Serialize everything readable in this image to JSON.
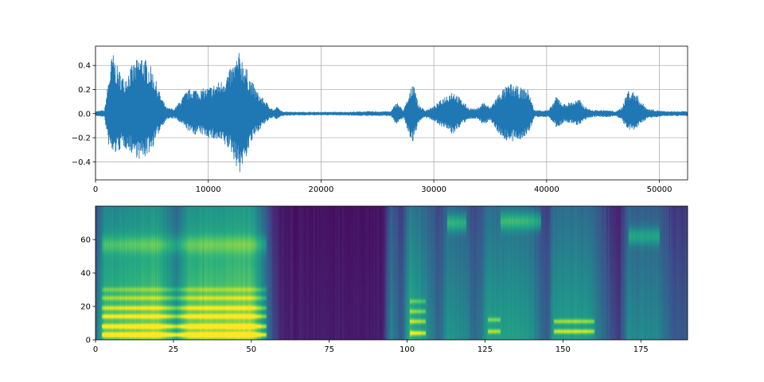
{
  "chart_data": [
    {
      "type": "line",
      "title": "",
      "xlabel": "",
      "ylabel": "",
      "xlim": [
        0,
        52500
      ],
      "ylim": [
        -0.55,
        0.56
      ],
      "grid": true,
      "line_color": "#1f77b4",
      "x_ticks": [
        0,
        10000,
        20000,
        30000,
        40000,
        50000
      ],
      "x_tick_labels": [
        "0",
        "10000",
        "20000",
        "30000",
        "40000",
        "50000"
      ],
      "y_ticks": [
        0.4,
        0.2,
        0.0,
        -0.2,
        -0.4
      ],
      "y_tick_labels": [
        "0.4",
        "0.2",
        "0.0",
        "−0.2",
        "−0.4"
      ],
      "series": [
        {
          "x": [
            0,
            800,
            1100,
            1500,
            1900,
            2500,
            3200,
            4100,
            5000,
            5800,
            6300,
            7000,
            8000,
            8600,
            9200,
            10000,
            11200,
            12000,
            12400,
            12800,
            13300,
            13800,
            14400,
            15300,
            15800,
            16100,
            16500,
            18000,
            20000,
            22000,
            24000,
            26200,
            26700,
            27300,
            27800,
            28200,
            28600,
            29200,
            30000,
            31000,
            31700,
            32400,
            33100,
            33800,
            34400,
            35000,
            35400,
            36000,
            36800,
            37600,
            38400,
            38900,
            39400,
            40200,
            40900,
            41500,
            42100,
            42900,
            43400,
            44000,
            44700,
            45300,
            46200,
            46700,
            47200,
            47900,
            48400,
            49000,
            49800,
            50500,
            51500,
            52500
          ],
          "peak": [
            0.02,
            0.03,
            0.25,
            0.52,
            0.4,
            0.3,
            0.4,
            0.5,
            0.38,
            0.15,
            0.05,
            0.04,
            0.18,
            0.22,
            0.2,
            0.22,
            0.28,
            0.38,
            0.45,
            0.52,
            0.4,
            0.28,
            0.18,
            0.08,
            0.03,
            0.06,
            0.02,
            0.015,
            0.015,
            0.015,
            0.02,
            0.02,
            0.1,
            0.03,
            0.15,
            0.3,
            0.08,
            0.03,
            0.06,
            0.15,
            0.2,
            0.12,
            0.05,
            0.04,
            0.1,
            0.05,
            0.12,
            0.2,
            0.25,
            0.22,
            0.2,
            0.03,
            0.03,
            0.03,
            0.15,
            0.08,
            0.1,
            0.12,
            0.06,
            0.03,
            0.03,
            0.03,
            0.02,
            0.06,
            0.2,
            0.18,
            0.1,
            0.04,
            0.03,
            0.02,
            0.02,
            0.02
          ],
          "trough": [
            -0.02,
            -0.03,
            -0.25,
            -0.35,
            -0.33,
            -0.28,
            -0.33,
            -0.4,
            -0.3,
            -0.12,
            -0.05,
            -0.04,
            -0.12,
            -0.18,
            -0.17,
            -0.2,
            -0.25,
            -0.32,
            -0.42,
            -0.5,
            -0.38,
            -0.25,
            -0.15,
            -0.06,
            -0.03,
            -0.05,
            -0.02,
            -0.015,
            -0.015,
            -0.015,
            -0.02,
            -0.02,
            -0.1,
            -0.03,
            -0.18,
            -0.25,
            -0.08,
            -0.03,
            -0.06,
            -0.13,
            -0.18,
            -0.1,
            -0.05,
            -0.04,
            -0.1,
            -0.05,
            -0.12,
            -0.2,
            -0.25,
            -0.22,
            -0.18,
            -0.03,
            -0.03,
            -0.03,
            -0.12,
            -0.08,
            -0.08,
            -0.1,
            -0.06,
            -0.03,
            -0.03,
            -0.03,
            -0.02,
            -0.06,
            -0.15,
            -0.14,
            -0.08,
            -0.04,
            -0.03,
            -0.02,
            -0.02,
            -0.02
          ]
        }
      ]
    },
    {
      "type": "heatmap",
      "title": "",
      "xlabel": "",
      "ylabel": "",
      "xlim": [
        0,
        190
      ],
      "ylim": [
        0,
        80
      ],
      "colormap": "viridis",
      "colors": {
        "low": "#440154",
        "mid": "#21918c",
        "high": "#fde725"
      },
      "x_ticks": [
        0,
        25,
        50,
        75,
        100,
        125,
        150,
        175
      ],
      "x_tick_labels": [
        "0",
        "25",
        "50",
        "75",
        "100",
        "125",
        "150",
        "175"
      ],
      "y_ticks": [
        0,
        20,
        40,
        60
      ],
      "y_tick_labels": [
        "0",
        "20",
        "40",
        "60"
      ],
      "n_frames": 190,
      "n_bins": 80,
      "energy_profile": [
        {
          "x": 0,
          "e": 0.35
        },
        {
          "x": 3,
          "e": 0.75
        },
        {
          "x": 20,
          "e": 0.85
        },
        {
          "x": 26,
          "e": 0.55
        },
        {
          "x": 30,
          "e": 0.85
        },
        {
          "x": 50,
          "e": 0.9
        },
        {
          "x": 55,
          "e": 0.45
        },
        {
          "x": 57,
          "e": 0.25
        },
        {
          "x": 60,
          "e": 0.12
        },
        {
          "x": 92,
          "e": 0.1
        },
        {
          "x": 95,
          "e": 0.5
        },
        {
          "x": 98,
          "e": 0.3
        },
        {
          "x": 101,
          "e": 0.7
        },
        {
          "x": 106,
          "e": 0.55
        },
        {
          "x": 110,
          "e": 0.35
        },
        {
          "x": 113,
          "e": 0.55
        },
        {
          "x": 119,
          "e": 0.5
        },
        {
          "x": 122,
          "e": 0.35
        },
        {
          "x": 126,
          "e": 0.6
        },
        {
          "x": 135,
          "e": 0.6
        },
        {
          "x": 140,
          "e": 0.55
        },
        {
          "x": 145,
          "e": 0.3
        },
        {
          "x": 147,
          "e": 0.6
        },
        {
          "x": 158,
          "e": 0.6
        },
        {
          "x": 165,
          "e": 0.3
        },
        {
          "x": 168,
          "e": 0.2
        },
        {
          "x": 171,
          "e": 0.5
        },
        {
          "x": 180,
          "e": 0.5
        },
        {
          "x": 186,
          "e": 0.3
        },
        {
          "x": 190,
          "e": 0.3
        }
      ],
      "harmonic_bands": [
        {
          "x_start": 2,
          "x_end": 55,
          "centers": [
            3,
            8,
            14,
            19,
            25,
            30
          ],
          "strength": 0.95
        },
        {
          "x_start": 101,
          "x_end": 106,
          "centers": [
            4,
            11,
            17,
            23
          ],
          "strength": 0.85
        },
        {
          "x_start": 126,
          "x_end": 130,
          "centers": [
            5,
            12
          ],
          "strength": 0.7
        },
        {
          "x_start": 147,
          "x_end": 160,
          "centers": [
            5,
            11
          ],
          "strength": 0.8
        }
      ],
      "high_formants": [
        {
          "x_start": 113,
          "x_end": 119,
          "center": 70,
          "strength": 0.85
        },
        {
          "x_start": 130,
          "x_end": 143,
          "center": 71,
          "strength": 0.85
        },
        {
          "x_start": 171,
          "x_end": 181,
          "center": 62,
          "strength": 0.7
        },
        {
          "x_start": 2,
          "x_end": 55,
          "center": 57,
          "strength": 0.5
        }
      ]
    }
  ]
}
